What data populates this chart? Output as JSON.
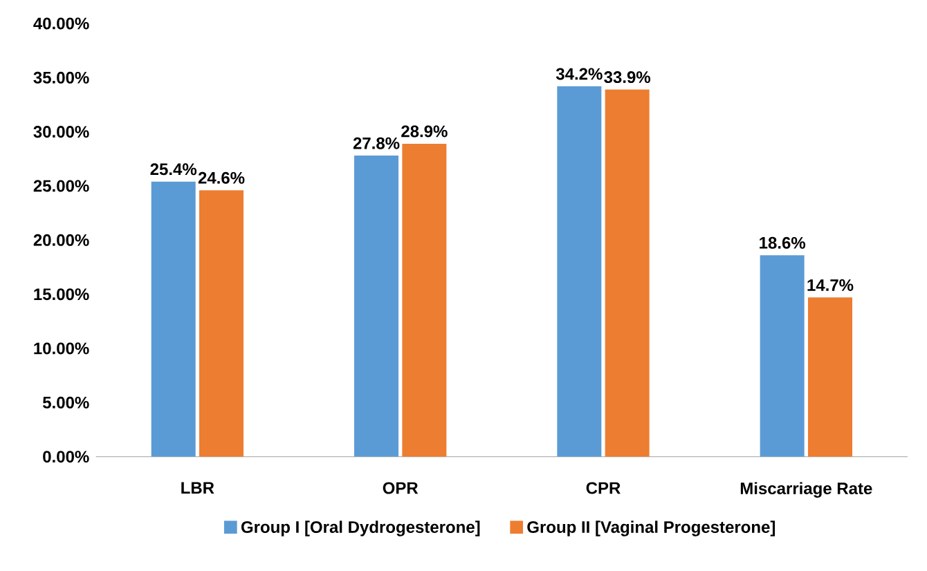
{
  "chart_data": {
    "type": "bar",
    "categories": [
      "LBR",
      "OPR",
      "CPR",
      "Miscarriage Rate"
    ],
    "series": [
      {
        "name": "Group I [Oral Dydrogesterone]",
        "color": "#5b9bd5",
        "values": [
          25.4,
          27.8,
          34.2,
          18.6
        ],
        "value_labels": [
          "25.4%",
          "27.8%",
          "34.2%",
          "18.6%"
        ]
      },
      {
        "name": "Group II [Vaginal Progesterone]",
        "color": "#ed7d31",
        "values": [
          24.6,
          28.9,
          33.9,
          14.7
        ],
        "value_labels": [
          "24.6%",
          "28.9%",
          "33.9%",
          "14.7%"
        ]
      }
    ],
    "ylim": [
      0,
      40
    ],
    "yticks": [
      {
        "value": 0,
        "label": "0.00%"
      },
      {
        "value": 5,
        "label": "5.00%"
      },
      {
        "value": 10,
        "label": "10.00%"
      },
      {
        "value": 15,
        "label": "15.00%"
      },
      {
        "value": 20,
        "label": "20.00%"
      },
      {
        "value": 25,
        "label": "25.00%"
      },
      {
        "value": 30,
        "label": "30.00%"
      },
      {
        "value": 35,
        "label": "35.00%"
      },
      {
        "value": 40,
        "label": "40.00%"
      }
    ],
    "legend": "bottom"
  }
}
